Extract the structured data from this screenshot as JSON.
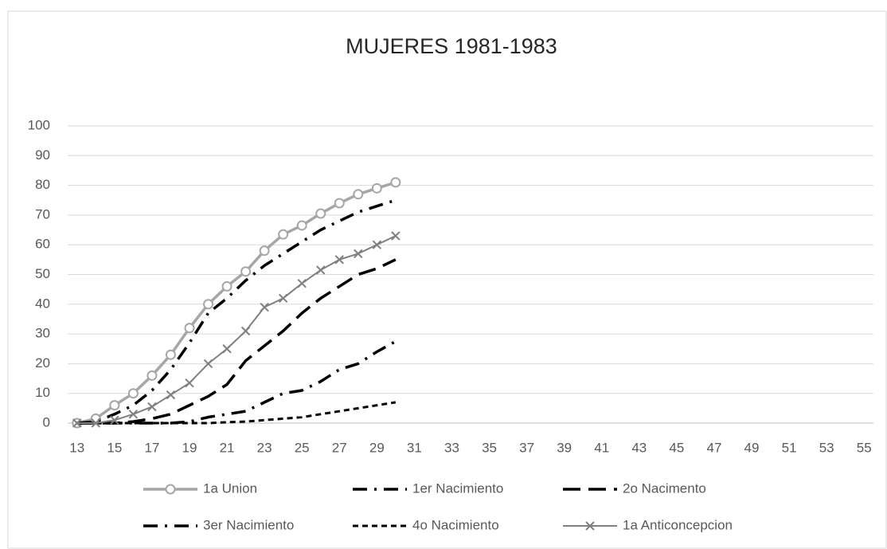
{
  "chart_data": {
    "type": "line",
    "title": "MUJERES 1981-1983",
    "x": [
      13,
      14,
      15,
      16,
      17,
      18,
      19,
      20,
      21,
      22,
      23,
      24,
      25,
      26,
      27,
      28,
      29,
      30
    ],
    "xlim": [
      12.5,
      55.5
    ],
    "xticks": [
      13,
      15,
      17,
      19,
      21,
      23,
      25,
      27,
      29,
      31,
      33,
      35,
      37,
      39,
      41,
      43,
      45,
      47,
      49,
      51,
      53,
      55
    ],
    "ylim": [
      0,
      100
    ],
    "yticks": [
      0,
      10,
      20,
      30,
      40,
      50,
      60,
      70,
      80,
      90,
      100
    ],
    "grid": true,
    "legend": "bottom",
    "series": [
      {
        "name": "1a Union",
        "color": "#a6a6a6",
        "dash": "solid",
        "marker": "circle",
        "values": [
          0,
          1.5,
          6,
          10,
          16,
          23,
          32,
          40,
          46,
          51,
          58,
          63.5,
          66.5,
          70.5,
          74,
          77,
          79,
          81
        ]
      },
      {
        "name": "1er Nacimiento",
        "color": "#000000",
        "dash": "dash-dot",
        "marker": "none",
        "values": [
          0,
          0.5,
          3,
          6,
          11,
          18,
          27,
          37,
          42,
          48,
          53,
          57,
          61,
          65,
          68,
          71,
          73,
          75
        ]
      },
      {
        "name": "2o Nacimento",
        "color": "#000000",
        "dash": "long-dash",
        "marker": "none",
        "values": [
          0,
          0,
          0,
          0.5,
          1.5,
          3,
          6,
          9,
          13,
          21,
          26,
          31,
          37,
          42,
          46,
          50,
          52,
          55
        ]
      },
      {
        "name": "3er Nacimiento",
        "color": "#000000",
        "dash": "dash-dot",
        "marker": "none",
        "values": [
          0,
          0,
          0,
          0,
          0,
          0,
          0.5,
          2,
          3,
          4,
          7,
          10,
          11,
          14,
          18,
          20,
          24,
          27.5
        ]
      },
      {
        "name": "4o Nacimiento",
        "color": "#000000",
        "dash": "dash",
        "marker": "none",
        "values": [
          0,
          0,
          0,
          0,
          0,
          0,
          0,
          0,
          0.3,
          0.5,
          1,
          1.5,
          2,
          3,
          4,
          5,
          6,
          7
        ]
      },
      {
        "name": "1a Anticoncepcion",
        "color": "#808080",
        "dash": "solid",
        "marker": "x",
        "values": [
          0,
          0,
          1,
          3,
          5.5,
          9.5,
          13.5,
          20,
          25,
          31,
          39,
          42,
          47,
          51.5,
          55,
          57,
          60,
          63
        ]
      }
    ]
  }
}
